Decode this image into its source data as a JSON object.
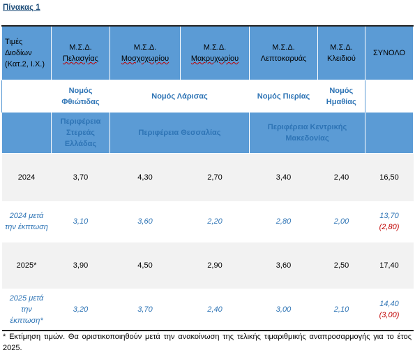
{
  "header": {
    "title": "Πίνακας 1"
  },
  "table": {
    "header": [
      "Τιμές Διοδίων (Κατ.2, Ι.Χ.)",
      {
        "prefix": "Μ.Σ.Δ.",
        "name": "Πελασγίας"
      },
      {
        "prefix": "Μ.Σ.Δ.",
        "name": "Μοσχοχωρίου"
      },
      {
        "prefix": "Μ.Σ.Δ.",
        "name": "Μακρυχωρίου"
      },
      {
        "prefix": "Μ.Σ.Δ.",
        "name": "Λεπτοκαρυάς"
      },
      {
        "prefix": "Μ.Σ.Δ.",
        "name": "Κλειδιού"
      },
      "ΣΥΝΟΛΟ"
    ],
    "prefectures": [
      "Νομός Φθιώτιδας",
      "Νομός Λάρισας",
      "Νομός Πιερίας",
      "Νομός Ημαθίας"
    ],
    "regions": [
      "Περιφέρεια Στερεάς Ελλάδας",
      "Περιφέρεια Θεσσαλίας",
      "Περιφέρεια Κεντρικής Μακεδονίας"
    ],
    "rows": [
      {
        "label": "2024",
        "values": [
          "3,70",
          "4,30",
          "2,70",
          "3,40",
          "2,40"
        ],
        "total": "16,50"
      },
      {
        "label": "2024 μετά την έκπτωση",
        "values": [
          "3,10",
          "3,60",
          "2,20",
          "2,80",
          "2,00"
        ],
        "total": "13,70",
        "discount": "(2,80)"
      },
      {
        "label": "2025*",
        "values": [
          "3,90",
          "4,50",
          "2,90",
          "3,60",
          "2,50"
        ],
        "total": "17,40"
      },
      {
        "label": "2025 μετά την έκπτωση*",
        "values": [
          "3,20",
          "3,70",
          "2,40",
          "3,00",
          "2,10"
        ],
        "total": "14,40",
        "discount": "(3,00)"
      }
    ]
  },
  "footnote": "* Εκτίμηση τιμών. Θα οριστικοποιηθούν μετά την ανακοίνωση της τελικής τιμαριθμικής αναπροσαρμογής για το έτος 2025."
}
